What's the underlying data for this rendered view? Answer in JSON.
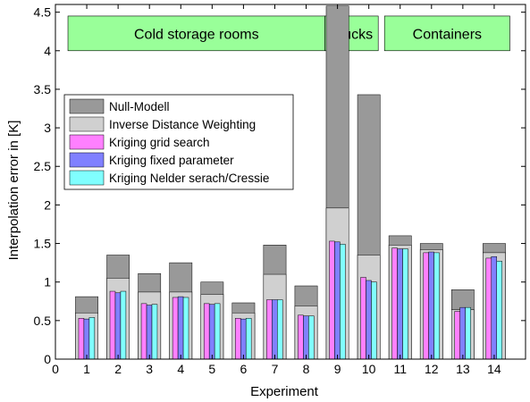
{
  "chart_data": {
    "type": "bar",
    "xlabel": "Experiment",
    "ylabel": "Interpolation error in [K]",
    "xlim": [
      0,
      15
    ],
    "ylim": [
      0,
      4.6
    ],
    "xticks": [
      "0",
      "1",
      "2",
      "3",
      "4",
      "5",
      "6",
      "7",
      "8",
      "9",
      "10",
      "11",
      "12",
      "13",
      "14"
    ],
    "yticks": [
      "0",
      "0.5",
      "1",
      "1.5",
      "2",
      "2.5",
      "3",
      "3.5",
      "4",
      "4.5"
    ],
    "grid": false,
    "legend_position": "left",
    "categories": [
      1,
      2,
      3,
      4,
      5,
      6,
      7,
      8,
      9,
      10,
      11,
      12,
      13,
      14
    ],
    "series": [
      {
        "name": "Null-Modell",
        "color": "#999999",
        "values": [
          0.81,
          1.35,
          1.11,
          1.25,
          1.0,
          0.73,
          1.48,
          0.95,
          4.58,
          3.43,
          1.6,
          1.5,
          0.9,
          1.5
        ]
      },
      {
        "name": "Inverse Distance Weighting",
        "color": "#d0d0d0",
        "values": [
          0.6,
          1.05,
          0.87,
          0.87,
          0.84,
          0.6,
          1.1,
          0.69,
          1.96,
          1.35,
          1.48,
          1.42,
          0.64,
          1.38
        ]
      },
      {
        "name": "Kriging grid search",
        "color": "#ff80ff",
        "values": [
          0.53,
          0.88,
          0.72,
          0.8,
          0.72,
          0.53,
          0.77,
          0.57,
          1.53,
          1.06,
          1.44,
          1.38,
          0.62,
          1.31
        ]
      },
      {
        "name": "Kriging fixed parameter",
        "color": "#8080ff",
        "values": [
          0.52,
          0.86,
          0.7,
          0.81,
          0.71,
          0.52,
          0.77,
          0.56,
          1.52,
          1.02,
          1.43,
          1.39,
          0.67,
          1.33
        ]
      },
      {
        "name": "Kriging Nelder serach/Cressie",
        "color": "#80ffff",
        "values": [
          0.54,
          0.88,
          0.71,
          0.8,
          0.72,
          0.53,
          0.77,
          0.56,
          1.49,
          1.0,
          1.43,
          1.38,
          0.67,
          1.27
        ]
      }
    ],
    "group_boxes": [
      {
        "label": "Cold storage rooms",
        "x_from": 0.4,
        "x_to": 8.6,
        "y_from": 4.0,
        "y_to": 4.45
      },
      {
        "label": "Trucks",
        "x_from": 8.6,
        "x_to": 10.3,
        "y_from": 4.0,
        "y_to": 4.45
      },
      {
        "label": "Containers",
        "x_from": 10.5,
        "x_to": 14.5,
        "y_from": 4.0,
        "y_to": 4.45
      }
    ],
    "box_color": "#99ff99"
  }
}
